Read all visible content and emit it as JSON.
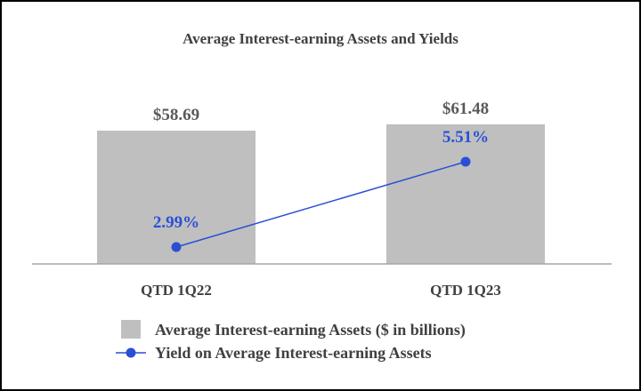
{
  "chart_data": {
    "type": "bar",
    "title": "Average Interest-earning Assets and Yields",
    "categories": [
      "QTD 1Q22",
      "QTD 1Q23"
    ],
    "series": [
      {
        "name": "Average Interest-earning Assets ($ in billions)",
        "type": "bar",
        "values": [
          58.69,
          61.48
        ],
        "value_labels": [
          "$58.69",
          "$61.48"
        ],
        "color": "#bfbfbf"
      },
      {
        "name": "Yield on Average Interest-earning Assets",
        "type": "line",
        "values": [
          2.99,
          5.51
        ],
        "value_labels": [
          "2.99%",
          "5.51%"
        ],
        "color": "#2a4fd6"
      }
    ],
    "legend_position": "bottom-left",
    "grid": false
  }
}
